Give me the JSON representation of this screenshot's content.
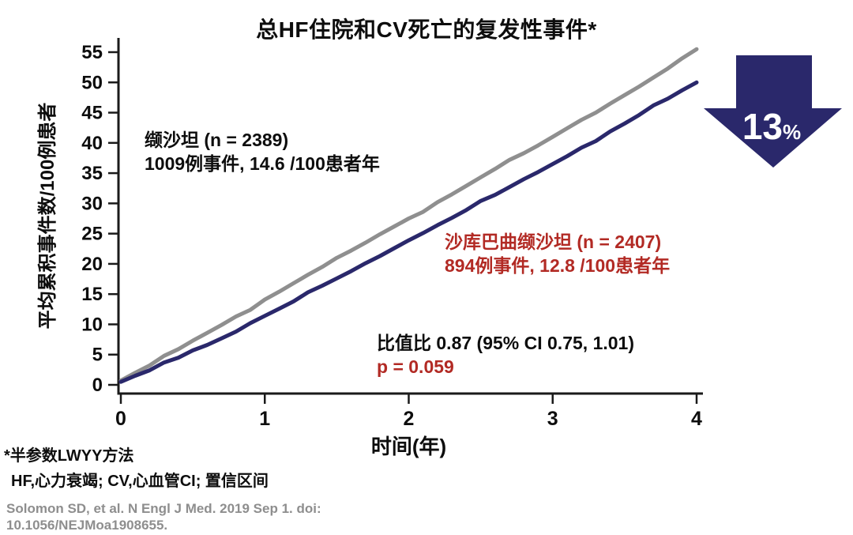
{
  "title": "总HF住院和CV死亡的复发性事件*",
  "colors": {
    "navy": "#2a286b",
    "gray_line": "#8f8f8f",
    "red": "#b22a24",
    "axis": "#1a1a1a",
    "citation_gray": "#8e8e8e"
  },
  "arrow": {
    "value": "13",
    "unit": "%"
  },
  "annotations": {
    "valsartan": {
      "line1": "缬沙坦 (n = 2389)",
      "line2": "1009例事件, 14.6 /100患者年"
    },
    "sacubitril": {
      "line1": "沙库巴曲缬沙坦 (n = 2407)",
      "line2": "894例事件, 12.8 /100患者年"
    },
    "rate_ratio": "比值比 0.87 (95% CI 0.75, 1.01)",
    "p_value": "p = 0.059"
  },
  "footnotes": {
    "line1": "*半参数LWYY方法",
    "line2": "HF,心力衰竭; CV,心血管CI; 置信区间"
  },
  "citation": {
    "line1": "Solomon SD, et al. N Engl J Med. 2019 Sep 1. doi:",
    "line2": "10.1056/NEJMoa1908655."
  },
  "chart_data": {
    "type": "line",
    "title": "总HF住院和CV死亡的复发性事件*",
    "xlabel": "时间(年)",
    "ylabel": "平均累积事件数/100例患者",
    "xlim": [
      0,
      4
    ],
    "ylim": [
      0,
      55
    ],
    "xticks": [
      0,
      1,
      2,
      3,
      4
    ],
    "yticks": [
      0,
      5,
      10,
      15,
      20,
      25,
      30,
      35,
      40,
      45,
      50,
      55
    ],
    "grid": false,
    "legend_position": "inline-annotations",
    "x": [
      0,
      0.1,
      0.2,
      0.3,
      0.4,
      0.5,
      0.6,
      0.7,
      0.8,
      0.9,
      1.0,
      1.1,
      1.2,
      1.3,
      1.4,
      1.5,
      1.6,
      1.7,
      1.8,
      1.9,
      2.0,
      2.1,
      2.2,
      2.3,
      2.4,
      2.5,
      2.6,
      2.7,
      2.8,
      2.9,
      3.0,
      3.1,
      3.2,
      3.3,
      3.4,
      3.5,
      3.6,
      3.7,
      3.8,
      3.9,
      4.0
    ],
    "series": [
      {
        "name": "缬沙坦",
        "events": 1009,
        "rate_per_100py": 14.6,
        "n": 2389,
        "color_key": "gray_line",
        "values": [
          0.7,
          2.0,
          3.2,
          4.8,
          5.9,
          7.3,
          8.6,
          9.9,
          11.3,
          12.4,
          14.1,
          15.4,
          16.8,
          18.2,
          19.5,
          21.0,
          22.2,
          23.5,
          24.9,
          26.2,
          27.5,
          28.6,
          30.2,
          31.5,
          32.9,
          34.3,
          35.7,
          37.2,
          38.3,
          39.6,
          41.0,
          42.4,
          43.8,
          45.0,
          46.5,
          47.9,
          49.3,
          50.8,
          52.3,
          54.0,
          55.5
        ]
      },
      {
        "name": "沙库巴曲缬沙坦",
        "events": 894,
        "rate_per_100py": 12.8,
        "n": 2407,
        "color_key": "navy",
        "values": [
          0.5,
          1.5,
          2.4,
          3.7,
          4.5,
          5.7,
          6.6,
          7.7,
          8.8,
          10.2,
          11.4,
          12.6,
          13.8,
          15.3,
          16.4,
          17.6,
          18.8,
          20.1,
          21.3,
          22.6,
          23.9,
          25.1,
          26.4,
          27.6,
          28.9,
          30.4,
          31.4,
          32.7,
          34.0,
          35.2,
          36.5,
          37.8,
          39.2,
          40.3,
          41.9,
          43.2,
          44.6,
          46.2,
          47.3,
          48.7,
          50.0
        ]
      }
    ]
  }
}
